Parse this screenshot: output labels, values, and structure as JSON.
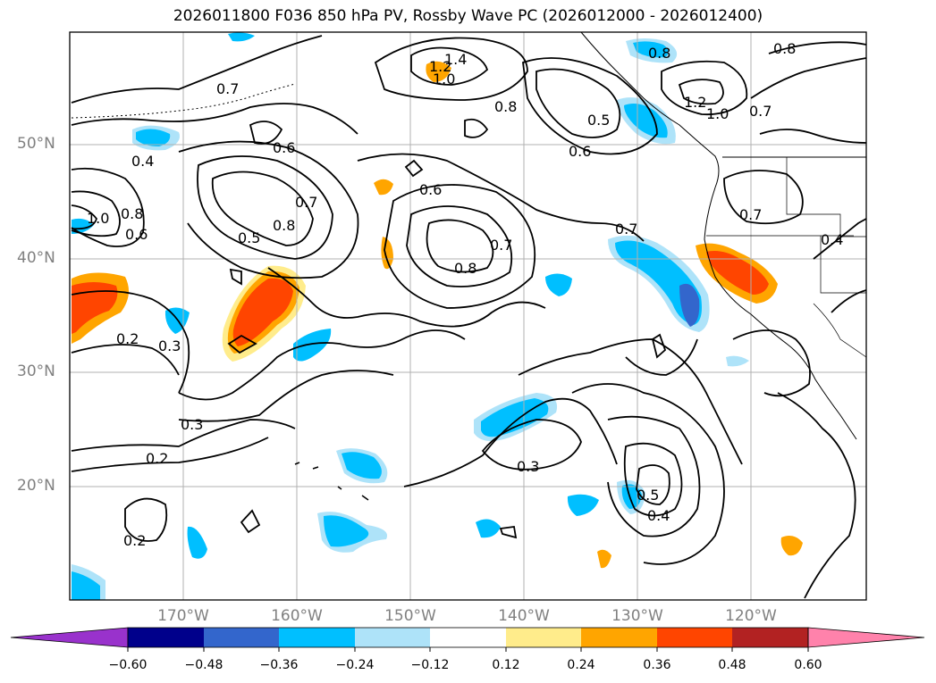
{
  "title": "2026011800 F036 850 hPa PV, Rossby Wave PC (2026012000 - 2026012400)",
  "map": {
    "lat_labels": [
      "50°N",
      "40°N",
      "30°N",
      "20°N"
    ],
    "lon_labels": [
      "170°W",
      "160°W",
      "150°W",
      "140°W",
      "130°W",
      "120°W"
    ],
    "contour_labels": [
      "1.4",
      "1.2",
      "1.0",
      "0.8",
      "0.8",
      "1.2",
      "1.0",
      "0.8",
      "0.7",
      "0.7",
      "0.5",
      "0.6",
      "0.6",
      "0.4",
      "1.0",
      "0.8",
      "0.6",
      "0.7",
      "0.8",
      "0.5",
      "0.6",
      "0.7",
      "0.8",
      "0.7",
      "0.7",
      "0.4",
      "0.2",
      "0.3",
      "0.3",
      "0.2",
      "0.3",
      "0.5",
      "0.4",
      "0.2"
    ],
    "palette": {
      "neg_lt012": "#ffffff",
      "neg_012": "#aee3f9",
      "neg_024": "#00bfff",
      "neg_036": "#3366cc",
      "neg_048": "#00008b",
      "neg_060": "#9932cc",
      "pos_012": "#ffec8b",
      "pos_024": "#ffa500",
      "pos_036": "#ff4500",
      "pos_048": "#b22222",
      "pos_060": "#ff82ab"
    }
  },
  "colorbar": {
    "ticks": [
      "−0.60",
      "−0.48",
      "−0.36",
      "−0.24",
      "−0.12",
      "0.12",
      "0.24",
      "0.36",
      "0.48",
      "0.60"
    ],
    "colors": [
      "#9932cc",
      "#00008b",
      "#3366cc",
      "#00bfff",
      "#aee3f9",
      "#ffffff",
      "#ffec8b",
      "#ffa500",
      "#ff4500",
      "#b22222",
      "#ff82ab"
    ]
  }
}
